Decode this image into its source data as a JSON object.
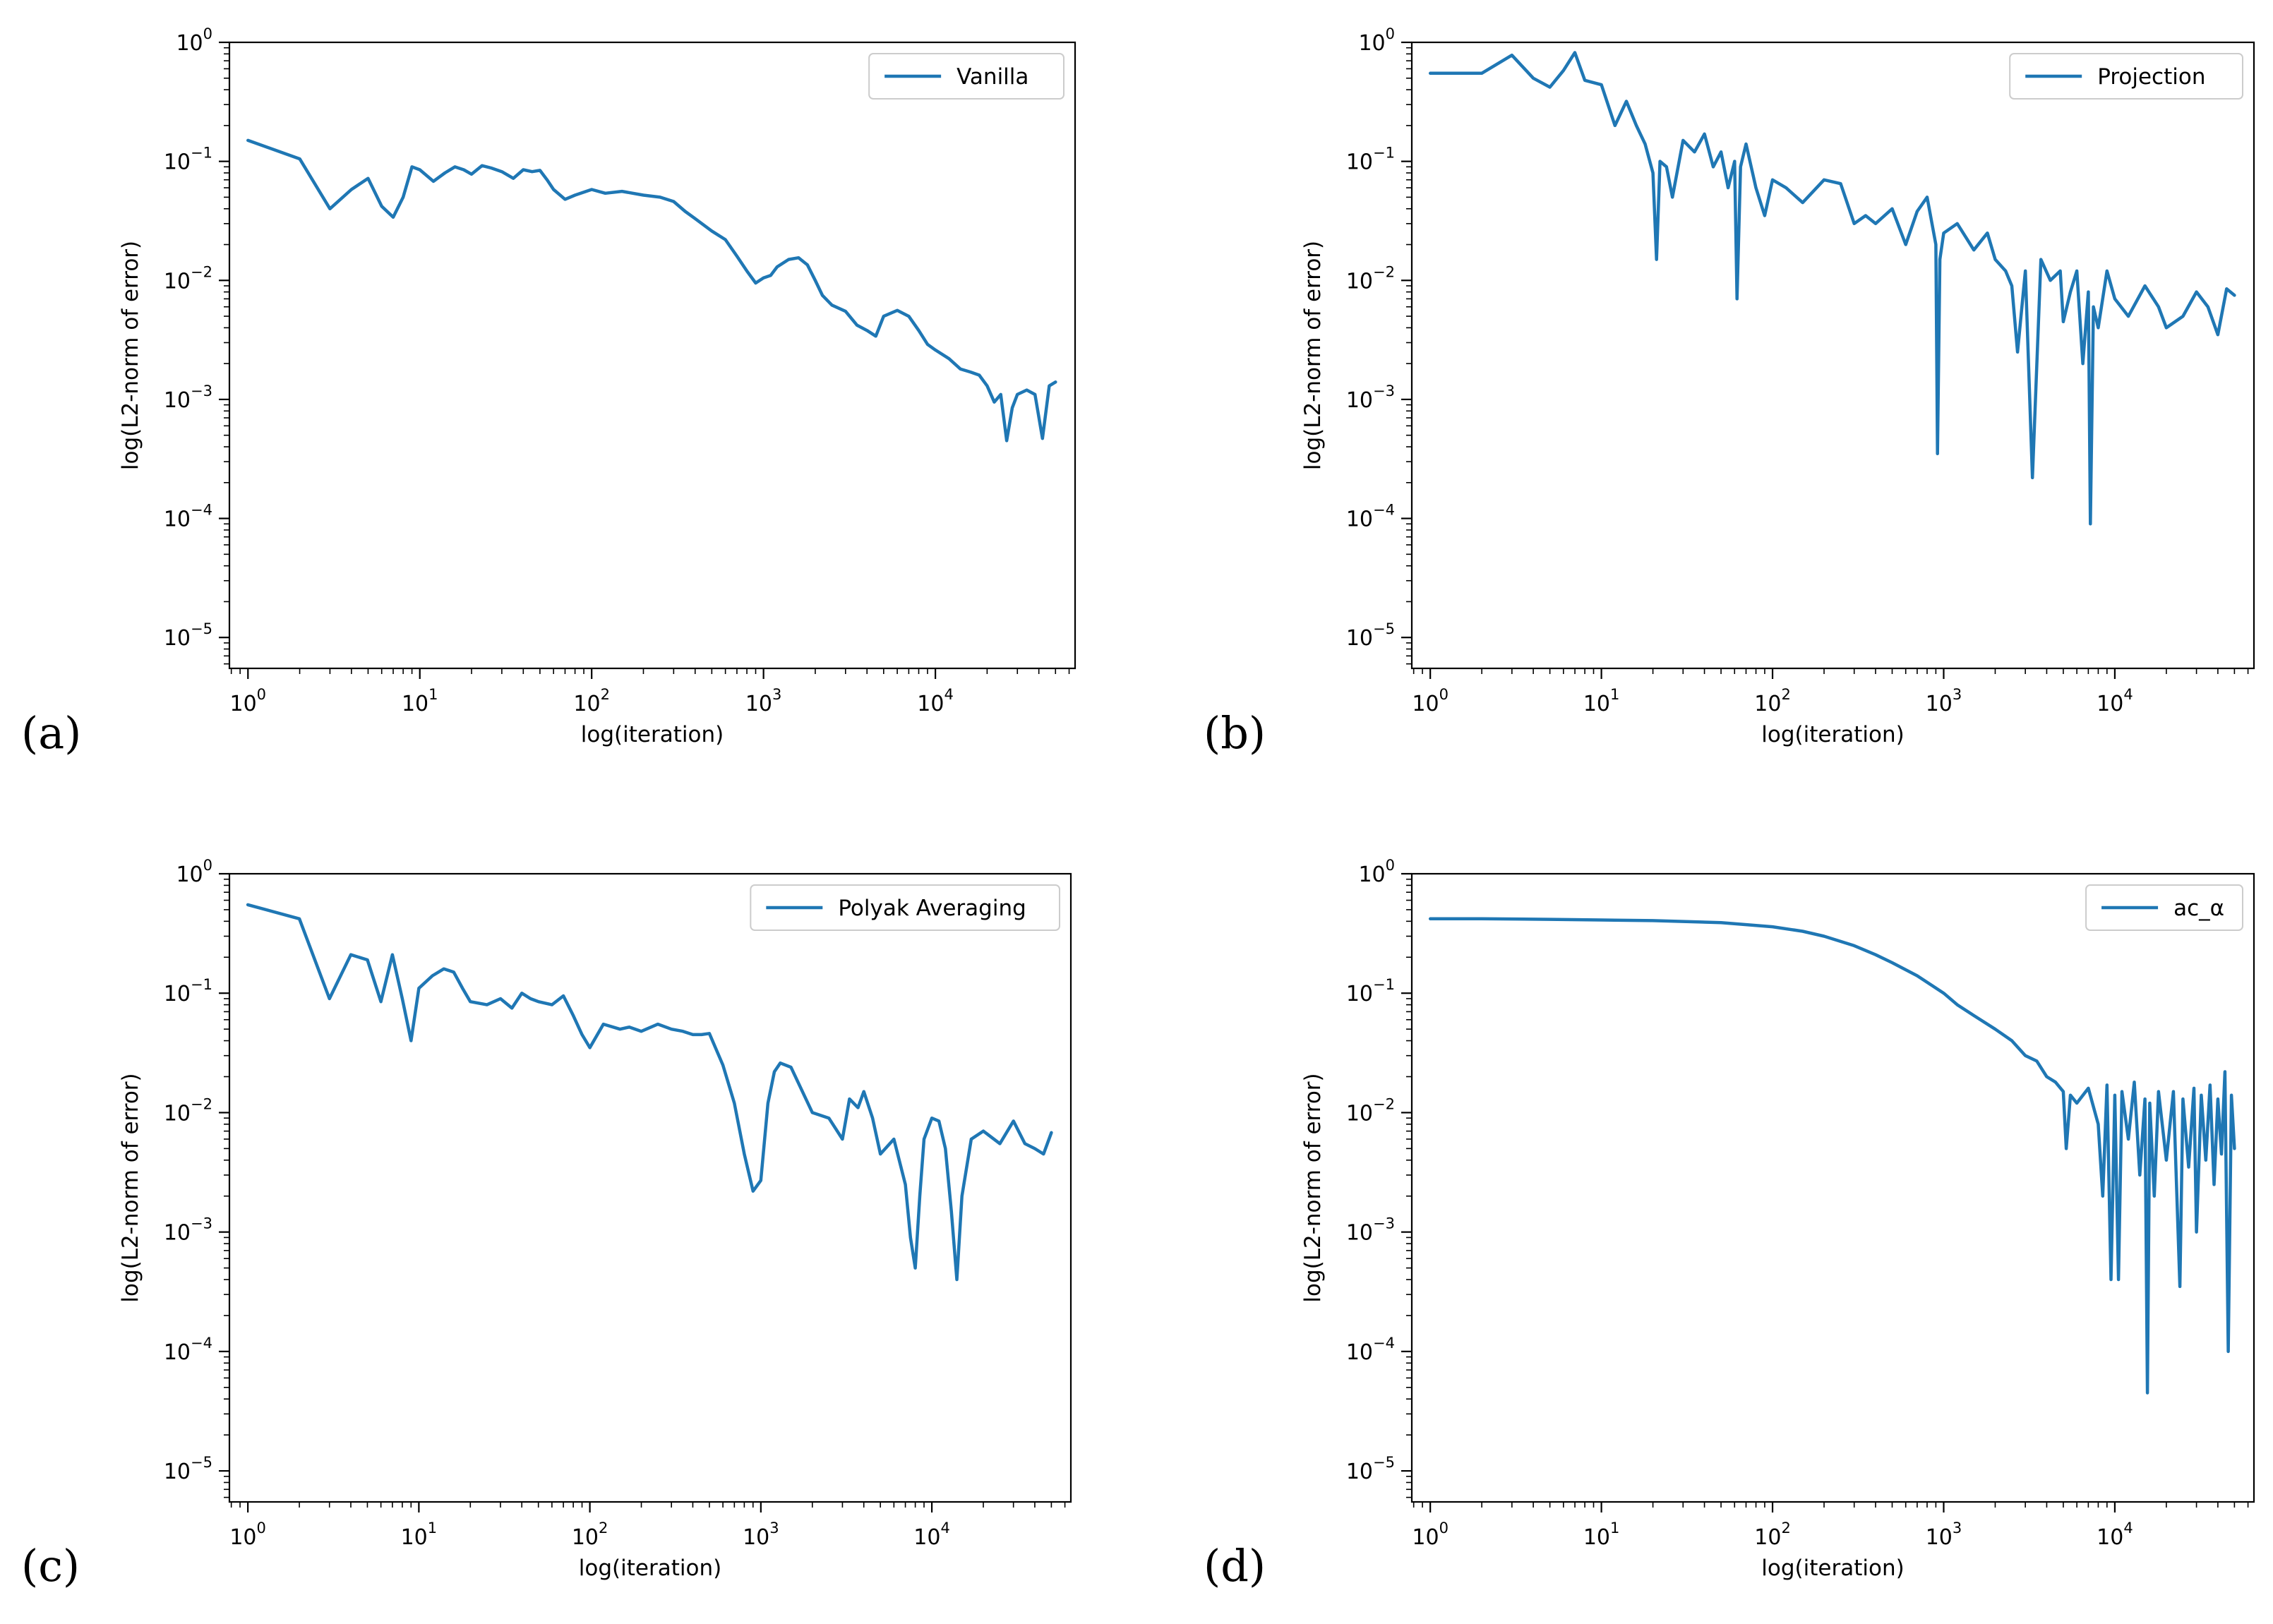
{
  "figure": {
    "line_color": "#1f77b4"
  },
  "chart_data": [
    {
      "type": "line",
      "panel_label": "(a)",
      "legend": "Vanilla",
      "legend_position": "top-right",
      "xlabel": "log(iteration)",
      "ylabel": "log(L2-norm of error)",
      "xscale": "log",
      "yscale": "log",
      "xlim": [
        0.78,
        65000
      ],
      "ylim": [
        5.5e-06,
        1.0
      ],
      "x_ticks": [
        1,
        10,
        100,
        1000,
        10000
      ],
      "x_tick_labels": [
        "10^0",
        "10^1",
        "10^2",
        "10^3",
        "10^4"
      ],
      "y_ticks": [
        1e-05,
        0.0001,
        0.001,
        0.01,
        0.1,
        1
      ],
      "y_tick_labels": [
        "10^-5",
        "10^-4",
        "10^-3",
        "10^-2",
        "10^-1",
        "10^0"
      ],
      "series": [
        {
          "name": "Vanilla",
          "x": [
            1,
            2,
            3,
            4,
            5,
            6,
            7,
            8,
            9,
            10,
            12,
            14,
            16,
            18,
            20,
            23,
            26,
            30,
            35,
            40,
            45,
            50,
            55,
            60,
            70,
            80,
            100,
            120,
            150,
            200,
            250,
            300,
            350,
            400,
            500,
            600,
            700,
            800,
            900,
            1000,
            1100,
            1200,
            1400,
            1600,
            1800,
            2000,
            2200,
            2500,
            3000,
            3500,
            4000,
            4500,
            5000,
            6000,
            7000,
            8000,
            9000,
            10000,
            12000,
            14000,
            16000,
            18000,
            20000,
            22000,
            24000,
            26000,
            28000,
            30000,
            34000,
            38000,
            42000,
            46000,
            50000
          ],
          "y": [
            0.15,
            0.105,
            0.04,
            0.058,
            0.072,
            0.042,
            0.034,
            0.05,
            0.09,
            0.085,
            0.068,
            0.08,
            0.09,
            0.085,
            0.078,
            0.092,
            0.088,
            0.082,
            0.072,
            0.085,
            0.082,
            0.084,
            0.07,
            0.058,
            0.048,
            0.052,
            0.058,
            0.054,
            0.056,
            0.052,
            0.05,
            0.046,
            0.038,
            0.033,
            0.026,
            0.022,
            0.016,
            0.012,
            0.0095,
            0.0105,
            0.011,
            0.013,
            0.015,
            0.0155,
            0.0135,
            0.01,
            0.0075,
            0.0062,
            0.0055,
            0.0042,
            0.0038,
            0.0034,
            0.005,
            0.0056,
            0.005,
            0.0038,
            0.0029,
            0.0026,
            0.0022,
            0.0018,
            0.0017,
            0.0016,
            0.0013,
            0.00095,
            0.0011,
            0.00045,
            0.00085,
            0.0011,
            0.0012,
            0.0011,
            0.00047,
            0.0013,
            0.0014
          ]
        }
      ]
    },
    {
      "type": "line",
      "panel_label": "(b)",
      "legend": "Projection",
      "legend_position": "top-right",
      "xlabel": "log(iteration)",
      "ylabel": "log(L2-norm of error)",
      "xscale": "log",
      "yscale": "log",
      "xlim": [
        0.78,
        65000
      ],
      "ylim": [
        5.5e-06,
        1.0
      ],
      "x_ticks": [
        1,
        10,
        100,
        1000,
        10000
      ],
      "x_tick_labels": [
        "10^0",
        "10^1",
        "10^2",
        "10^3",
        "10^4"
      ],
      "y_ticks": [
        1e-05,
        0.0001,
        0.001,
        0.01,
        0.1,
        1
      ],
      "y_tick_labels": [
        "10^-5",
        "10^-4",
        "10^-3",
        "10^-2",
        "10^-1",
        "10^0"
      ],
      "series": [
        {
          "name": "Projection",
          "x": [
            1,
            2,
            3,
            4,
            5,
            6,
            7,
            8,
            10,
            12,
            14,
            16,
            18,
            20,
            21,
            22,
            24,
            26,
            30,
            35,
            40,
            45,
            50,
            55,
            60,
            62,
            65,
            70,
            80,
            90,
            100,
            120,
            150,
            200,
            250,
            300,
            350,
            400,
            500,
            600,
            700,
            800,
            900,
            920,
            950,
            1000,
            1200,
            1500,
            1800,
            2000,
            2300,
            2500,
            2700,
            3000,
            3300,
            3700,
            4200,
            4800,
            5000,
            5500,
            6000,
            6500,
            7000,
            7200,
            7500,
            8000,
            9000,
            10000,
            12000,
            15000,
            18000,
            20000,
            25000,
            30000,
            35000,
            40000,
            45000,
            50000
          ],
          "y": [
            0.55,
            0.55,
            0.78,
            0.5,
            0.42,
            0.58,
            0.82,
            0.48,
            0.44,
            0.2,
            0.32,
            0.2,
            0.14,
            0.08,
            0.015,
            0.1,
            0.09,
            0.05,
            0.15,
            0.12,
            0.17,
            0.09,
            0.12,
            0.06,
            0.1,
            0.007,
            0.09,
            0.14,
            0.06,
            0.035,
            0.07,
            0.06,
            0.045,
            0.07,
            0.065,
            0.03,
            0.035,
            0.03,
            0.04,
            0.02,
            0.038,
            0.05,
            0.02,
            0.00035,
            0.015,
            0.025,
            0.03,
            0.018,
            0.025,
            0.015,
            0.012,
            0.009,
            0.0025,
            0.012,
            0.00022,
            0.015,
            0.01,
            0.012,
            0.0045,
            0.008,
            0.012,
            0.002,
            0.008,
            9e-05,
            0.006,
            0.004,
            0.012,
            0.007,
            0.005,
            0.009,
            0.006,
            0.004,
            0.005,
            0.008,
            0.006,
            0.0035,
            0.0085,
            0.0075
          ]
        }
      ]
    },
    {
      "type": "line",
      "panel_label": "(c)",
      "legend": "Polyak Averaging",
      "legend_position": "top-right",
      "xlabel": "log(iteration)",
      "ylabel": "log(L2-norm of error)",
      "xscale": "log",
      "yscale": "log",
      "xlim": [
        0.78,
        65000
      ],
      "ylim": [
        5.5e-06,
        1.0
      ],
      "x_ticks": [
        1,
        10,
        100,
        1000,
        10000
      ],
      "x_tick_labels": [
        "10^0",
        "10^1",
        "10^2",
        "10^3",
        "10^4"
      ],
      "y_ticks": [
        1e-05,
        0.0001,
        0.001,
        0.01,
        0.1,
        1
      ],
      "y_tick_labels": [
        "10^-5",
        "10^-4",
        "10^-3",
        "10^-2",
        "10^-1",
        "10^0"
      ],
      "series": [
        {
          "name": "Polyak Averaging",
          "x": [
            1,
            2,
            3,
            4,
            5,
            6,
            7,
            8,
            9,
            10,
            12,
            14,
            16,
            18,
            20,
            25,
            30,
            35,
            40,
            45,
            50,
            60,
            70,
            80,
            90,
            100,
            120,
            150,
            170,
            200,
            250,
            300,
            350,
            400,
            450,
            500,
            600,
            700,
            800,
            900,
            1000,
            1100,
            1200,
            1300,
            1500,
            2000,
            2500,
            3000,
            3300,
            3700,
            4000,
            4500,
            5000,
            6000,
            7000,
            7500,
            8000,
            8500,
            9000,
            10000,
            11000,
            12000,
            13000,
            14000,
            15000,
            17000,
            20000,
            25000,
            30000,
            35000,
            40000,
            45000,
            50000
          ],
          "y": [
            0.55,
            0.42,
            0.09,
            0.21,
            0.19,
            0.085,
            0.21,
            0.09,
            0.04,
            0.11,
            0.14,
            0.16,
            0.15,
            0.11,
            0.085,
            0.08,
            0.09,
            0.075,
            0.1,
            0.09,
            0.085,
            0.08,
            0.095,
            0.065,
            0.045,
            0.035,
            0.055,
            0.05,
            0.052,
            0.048,
            0.055,
            0.05,
            0.048,
            0.045,
            0.045,
            0.046,
            0.025,
            0.012,
            0.0045,
            0.0022,
            0.0027,
            0.012,
            0.022,
            0.026,
            0.024,
            0.01,
            0.009,
            0.006,
            0.013,
            0.011,
            0.015,
            0.009,
            0.0045,
            0.006,
            0.0025,
            0.0009,
            0.0005,
            0.002,
            0.006,
            0.009,
            0.0085,
            0.005,
            0.0015,
            0.0004,
            0.002,
            0.006,
            0.007,
            0.0055,
            0.0085,
            0.0055,
            0.005,
            0.0045,
            0.0068
          ]
        }
      ]
    },
    {
      "type": "line",
      "panel_label": "(d)",
      "legend": "ac_α",
      "legend_position": "top-right",
      "xlabel": "log(iteration)",
      "ylabel": "log(L2-norm of error)",
      "xscale": "log",
      "yscale": "log",
      "xlim": [
        0.78,
        65000
      ],
      "ylim": [
        5.5e-06,
        1.0
      ],
      "x_ticks": [
        1,
        10,
        100,
        1000,
        10000
      ],
      "x_tick_labels": [
        "10^0",
        "10^1",
        "10^2",
        "10^3",
        "10^4"
      ],
      "y_ticks": [
        1e-05,
        0.0001,
        0.001,
        0.01,
        0.1,
        1
      ],
      "y_tick_labels": [
        "10^-5",
        "10^-4",
        "10^-3",
        "10^-2",
        "10^-1",
        "10^0"
      ],
      "series": [
        {
          "name": "ac_α",
          "x": [
            1,
            2,
            5,
            10,
            20,
            50,
            100,
            150,
            200,
            300,
            400,
            500,
            700,
            1000,
            1200,
            1500,
            2000,
            2500,
            3000,
            3500,
            4000,
            4500,
            5000,
            5200,
            5500,
            6000,
            7000,
            8000,
            8500,
            9000,
            9500,
            10000,
            10500,
            11000,
            12000,
            13000,
            14000,
            15000,
            15500,
            16000,
            17000,
            18000,
            20000,
            22000,
            24000,
            25000,
            27000,
            29000,
            30000,
            32000,
            34000,
            36000,
            38000,
            40000,
            42000,
            44000,
            46000,
            48000,
            50000
          ],
          "y": [
            0.42,
            0.42,
            0.415,
            0.41,
            0.405,
            0.39,
            0.36,
            0.33,
            0.3,
            0.25,
            0.21,
            0.18,
            0.14,
            0.1,
            0.08,
            0.065,
            0.05,
            0.04,
            0.03,
            0.027,
            0.02,
            0.018,
            0.015,
            0.005,
            0.014,
            0.012,
            0.016,
            0.008,
            0.002,
            0.017,
            0.0004,
            0.014,
            0.0004,
            0.015,
            0.006,
            0.018,
            0.003,
            0.013,
            4.5e-05,
            0.012,
            0.002,
            0.015,
            0.004,
            0.015,
            0.00035,
            0.013,
            0.0035,
            0.016,
            0.001,
            0.014,
            0.004,
            0.017,
            0.0025,
            0.013,
            0.0045,
            0.022,
            0.0001,
            0.014,
            0.005
          ]
        }
      ]
    }
  ]
}
